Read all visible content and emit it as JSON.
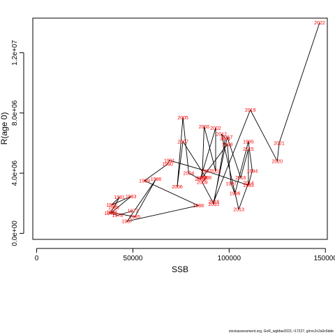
{
  "footer": "stockassessment.org, GoR_wgbfas2023, r17227, git:ec2c2a0c6dde",
  "chart_data": {
    "type": "line",
    "xlabel": "SSB",
    "ylabel": "R(age 0)",
    "xlim": [
      -2000,
      151000
    ],
    "ylim": [
      -400000,
      14300000
    ],
    "x_ticks": [
      0,
      50000,
      100000,
      150000
    ],
    "x_tick_labels": [
      "0",
      "50000",
      "100000",
      "150000"
    ],
    "y_ticks": [
      0,
      4000000,
      8000000,
      12000000
    ],
    "y_tick_labels": [
      "0.0e+00",
      "4.0e+06",
      "8.0e+06",
      "1.2e+07"
    ],
    "grid": false,
    "line_color": "#000000",
    "label_color": "#ff0000",
    "points": [
      {
        "year": "1977",
        "x": 50000,
        "y": 1500000
      },
      {
        "year": "1978",
        "x": 42000,
        "y": 1200000
      },
      {
        "year": "1979",
        "x": 38000,
        "y": 1350000
      },
      {
        "year": "1980",
        "x": 40000,
        "y": 1700000
      },
      {
        "year": "1981",
        "x": 43000,
        "y": 2400000
      },
      {
        "year": "1982",
        "x": 39000,
        "y": 1900000
      },
      {
        "year": "1983",
        "x": 49000,
        "y": 2450000
      },
      {
        "year": "1984",
        "x": 39000,
        "y": 1400000
      },
      {
        "year": "1985",
        "x": 51000,
        "y": 1100000
      },
      {
        "year": "1986",
        "x": 62000,
        "y": 3600000
      },
      {
        "year": "1987",
        "x": 47000,
        "y": 800000
      },
      {
        "year": "1988",
        "x": 84000,
        "y": 1850000
      },
      {
        "year": "1989",
        "x": 56000,
        "y": 3500000
      },
      {
        "year": "1990",
        "x": 68000,
        "y": 4600000
      },
      {
        "year": "1991",
        "x": 69000,
        "y": 4850000
      },
      {
        "year": "1992",
        "x": 88000,
        "y": 4150000
      },
      {
        "year": "1993",
        "x": 110000,
        "y": 3200000
      },
      {
        "year": "1994",
        "x": 112000,
        "y": 4150000
      },
      {
        "year": "1995",
        "x": 110000,
        "y": 6100000
      },
      {
        "year": "1996",
        "x": 103000,
        "y": 2650000
      },
      {
        "year": "1997",
        "x": 101000,
        "y": 3300000
      },
      {
        "year": "1998",
        "x": 99000,
        "y": 5900000
      },
      {
        "year": "1999",
        "x": 86000,
        "y": 3700000
      },
      {
        "year": "2000",
        "x": 87000,
        "y": 7100000
      },
      {
        "year": "2001",
        "x": 93000,
        "y": 4150000
      },
      {
        "year": "2002",
        "x": 93000,
        "y": 7000000
      },
      {
        "year": "2003",
        "x": 85000,
        "y": 3600000
      },
      {
        "year": "2004",
        "x": 79000,
        "y": 4000000
      },
      {
        "year": "2005",
        "x": 76000,
        "y": 7700000
      },
      {
        "year": "2006",
        "x": 73000,
        "y": 3100000
      },
      {
        "year": "2007",
        "x": 76000,
        "y": 6100000
      },
      {
        "year": "2008",
        "x": 88000,
        "y": 3700000
      },
      {
        "year": "2009",
        "x": 86000,
        "y": 3400000
      },
      {
        "year": "2010",
        "x": 92000,
        "y": 1950000
      },
      {
        "year": "2011",
        "x": 98000,
        "y": 6300000
      },
      {
        "year": "2012",
        "x": 96000,
        "y": 6600000
      },
      {
        "year": "2013",
        "x": 105000,
        "y": 1600000
      },
      {
        "year": "2014",
        "x": 110000,
        "y": 3350000
      },
      {
        "year": "2015",
        "x": 110000,
        "y": 5600000
      },
      {
        "year": "2016",
        "x": 106000,
        "y": 3700000
      },
      {
        "year": "2017",
        "x": 99000,
        "y": 6400000
      },
      {
        "year": "2018",
        "x": 92000,
        "y": 2100000
      },
      {
        "year": "2019",
        "x": 111000,
        "y": 8200000
      },
      {
        "year": "2020",
        "x": 125000,
        "y": 4800000
      },
      {
        "year": "2021",
        "x": 126000,
        "y": 6000000
      },
      {
        "year": "2022",
        "x": 147000,
        "y": 14000000
      }
    ]
  }
}
